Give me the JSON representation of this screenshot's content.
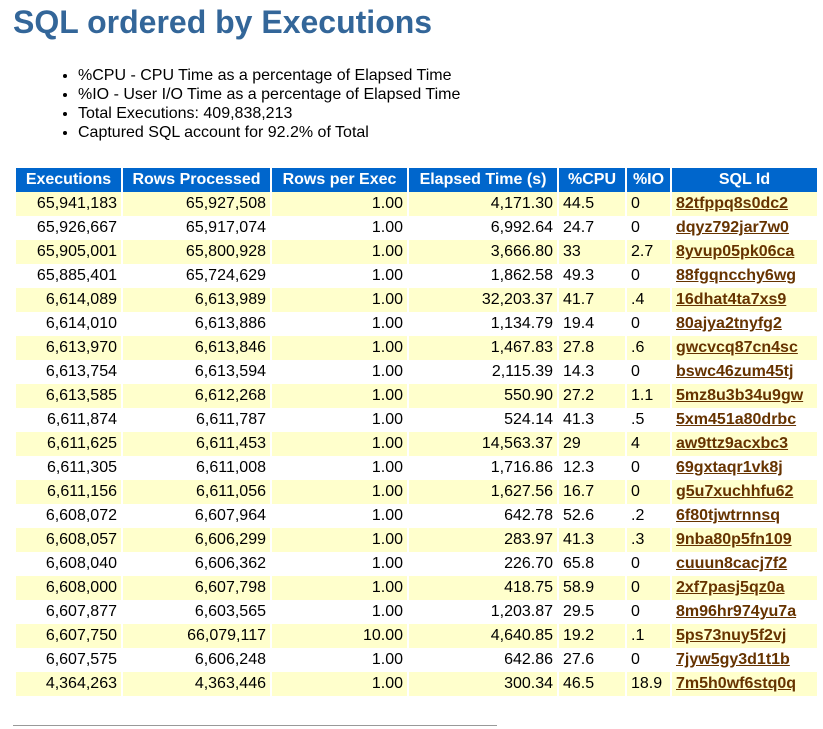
{
  "title": "SQL ordered by Executions",
  "bullets": [
    "%CPU - CPU Time as a percentage of Elapsed Time",
    "%IO - User I/O Time as a percentage of Elapsed Time",
    "Total Executions: 409,838,213",
    "Captured SQL account for 92.2% of Total"
  ],
  "table": {
    "headers": [
      "Executions",
      "Rows Processed",
      "Rows per Exec",
      "Elapsed Time (s)",
      "%CPU",
      "%IO",
      "SQL Id"
    ],
    "rows": [
      [
        "65,941,183",
        "65,927,508",
        "1.00",
        "4,171.30",
        "44.5",
        "0",
        "82tfppq8s0dc2"
      ],
      [
        "65,926,667",
        "65,917,074",
        "1.00",
        "6,992.64",
        "24.7",
        "0",
        "dqyz792jar7w0"
      ],
      [
        "65,905,001",
        "65,800,928",
        "1.00",
        "3,666.80",
        "33",
        "2.7",
        "8yvup05pk06ca"
      ],
      [
        "65,885,401",
        "65,724,629",
        "1.00",
        "1,862.58",
        "49.3",
        "0",
        "88fgqncchy6wg"
      ],
      [
        "6,614,089",
        "6,613,989",
        "1.00",
        "32,203.37",
        "41.7",
        ".4",
        "16dhat4ta7xs9"
      ],
      [
        "6,614,010",
        "6,613,886",
        "1.00",
        "1,134.79",
        "19.4",
        "0",
        "80ajya2tnyfg2"
      ],
      [
        "6,613,970",
        "6,613,846",
        "1.00",
        "1,467.83",
        "27.8",
        ".6",
        "gwcvcq87cn4sc"
      ],
      [
        "6,613,754",
        "6,613,594",
        "1.00",
        "2,115.39",
        "14.3",
        "0",
        "bswc46zum45tj"
      ],
      [
        "6,613,585",
        "6,612,268",
        "1.00",
        "550.90",
        "27.2",
        "1.1",
        "5mz8u3b34u9gw"
      ],
      [
        "6,611,874",
        "6,611,787",
        "1.00",
        "524.14",
        "41.3",
        ".5",
        "5xm451a80drbc"
      ],
      [
        "6,611,625",
        "6,611,453",
        "1.00",
        "14,563.37",
        "29",
        "4",
        "aw9ttz9acxbc3"
      ],
      [
        "6,611,305",
        "6,611,008",
        "1.00",
        "1,716.86",
        "12.3",
        "0",
        "69gxtaqr1vk8j"
      ],
      [
        "6,611,156",
        "6,611,056",
        "1.00",
        "1,627.56",
        "16.7",
        "0",
        "g5u7xuchhfu62"
      ],
      [
        "6,608,072",
        "6,607,964",
        "1.00",
        "642.78",
        "52.6",
        ".2",
        "6f80tjwtrnnsq"
      ],
      [
        "6,608,057",
        "6,606,299",
        "1.00",
        "283.97",
        "41.3",
        ".3",
        "9nba80p5fn109"
      ],
      [
        "6,608,040",
        "6,606,362",
        "1.00",
        "226.70",
        "65.8",
        "0",
        "cuuun8cacj7f2"
      ],
      [
        "6,608,000",
        "6,607,798",
        "1.00",
        "418.75",
        "58.9",
        "0",
        "2xf7pasj5qz0a"
      ],
      [
        "6,607,877",
        "6,603,565",
        "1.00",
        "1,203.87",
        "29.5",
        "0",
        "8m96hr974yu7a"
      ],
      [
        "6,607,750",
        "66,079,117",
        "10.00",
        "4,640.85",
        "19.2",
        ".1",
        "5ps73nuy5f2vj"
      ],
      [
        "6,607,575",
        "6,606,248",
        "1.00",
        "642.86",
        "27.6",
        "0",
        "7jyw5gy3d1t1b"
      ],
      [
        "4,364,263",
        "4,363,446",
        "1.00",
        "300.34",
        "46.5",
        "18.9",
        "7m5h0wf6stq0q"
      ]
    ]
  },
  "colors": {
    "title": "#336699",
    "header_bg": "#0066cc",
    "row_highlight": "#ffffcc",
    "link": "#663300"
  }
}
